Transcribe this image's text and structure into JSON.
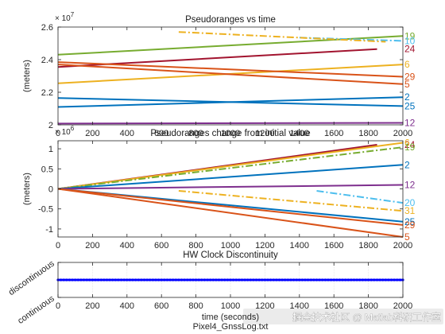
{
  "footer": "Pixel4_GnssLog.txt",
  "watermark": "掘金技术社区 @ Matlab科研工作室",
  "chart_data": [
    {
      "type": "line",
      "title": "Pseudoranges vs time",
      "ylabel": "(meters)",
      "xlabel": "",
      "exponent_label": "× 10^7",
      "exp_base": "× 10",
      "exp_power": "7",
      "xlim": [
        0,
        2000
      ],
      "ylim": [
        2.0,
        2.6
      ],
      "xticks": [
        "0",
        "200",
        "400",
        "600",
        "800",
        "1000",
        "1200",
        "1400",
        "1600",
        "1800",
        "2000"
      ],
      "yticks": [
        "2",
        "2.2",
        "2.4",
        "2.6"
      ],
      "ytick_values": [
        2.0,
        2.2,
        2.4,
        2.6
      ],
      "series": [
        {
          "name": "19",
          "color": "#77ac30",
          "dash": "solid",
          "x": [
            0,
            2000
          ],
          "y": [
            2.43,
            2.545
          ]
        },
        {
          "name": "10",
          "color": "#4dbeee",
          "dash": "dashdot",
          "x": [
            1400,
            2000
          ],
          "y": [
            2.535,
            2.515
          ]
        },
        {
          "name": "24",
          "color": "#a2142f",
          "dash": "solid",
          "x": [
            0,
            1850
          ],
          "y": [
            2.355,
            2.465
          ]
        },
        {
          "name": "",
          "color": "#edb120",
          "dash": "dashdot",
          "x": [
            700,
            1900
          ],
          "y": [
            2.57,
            2.51
          ]
        },
        {
          "name": "6",
          "color": "#edb120",
          "dash": "solid",
          "x": [
            0,
            2000
          ],
          "y": [
            2.255,
            2.37
          ]
        },
        {
          "name": "29",
          "color": "#d95319",
          "dash": "solid",
          "x": [
            0,
            2000
          ],
          "y": [
            2.385,
            2.295
          ]
        },
        {
          "name": "5",
          "color": "#d95319",
          "dash": "solid",
          "x": [
            0,
            2000
          ],
          "y": [
            2.37,
            2.25
          ]
        },
        {
          "name": "2",
          "color": "#0072bd",
          "dash": "solid",
          "x": [
            0,
            2000
          ],
          "y": [
            2.11,
            2.17
          ]
        },
        {
          "name": "25",
          "color": "#0072bd",
          "dash": "solid",
          "x": [
            0,
            2000
          ],
          "y": [
            2.165,
            2.115
          ]
        },
        {
          "name": "12",
          "color": "#7e2f8e",
          "dash": "solid",
          "x": [
            0,
            2000
          ],
          "y": [
            2.008,
            2.012
          ]
        }
      ]
    },
    {
      "type": "line",
      "title": "Pseudoranges change from initial value",
      "ylabel": "(meters)",
      "xlabel": "",
      "exponent_label": "× 10^6",
      "exp_base": "× 10",
      "exp_power": "6",
      "xlim": [
        0,
        2000
      ],
      "ylim": [
        -1.2,
        1.2
      ],
      "xticks": [
        "0",
        "200",
        "400",
        "600",
        "800",
        "1000",
        "1200",
        "1400",
        "1600",
        "1800",
        "2000"
      ],
      "yticks": [
        "-1",
        "-0.5",
        "0",
        "0.5",
        "1"
      ],
      "ytick_values": [
        -1,
        -0.5,
        0,
        0.5,
        1
      ],
      "series": [
        {
          "name": "24",
          "color": "#a2142f",
          "dash": "solid",
          "x": [
            0,
            1850
          ],
          "y": [
            0,
            1.1
          ]
        },
        {
          "name": "6",
          "color": "#edb120",
          "dash": "solid",
          "x": [
            0,
            2000
          ],
          "y": [
            0,
            1.15
          ]
        },
        {
          "name": "19",
          "color": "#77ac30",
          "dash": "dashdot",
          "x": [
            0,
            2000
          ],
          "y": [
            0,
            1.04
          ]
        },
        {
          "name": "2",
          "color": "#0072bd",
          "dash": "solid",
          "x": [
            0,
            2000
          ],
          "y": [
            0,
            0.6
          ]
        },
        {
          "name": "12",
          "color": "#7e2f8e",
          "dash": "solid",
          "x": [
            0,
            2000
          ],
          "y": [
            0,
            0.1
          ]
        },
        {
          "name": "20",
          "color": "#4dbeee",
          "dash": "dashdot",
          "x": [
            1500,
            2000
          ],
          "y": [
            -0.05,
            -0.35
          ]
        },
        {
          "name": "31",
          "color": "#edb120",
          "dash": "dashdot",
          "x": [
            700,
            2000
          ],
          "y": [
            -0.05,
            -0.55
          ]
        },
        {
          "name": "25",
          "color": "#0072bd",
          "dash": "solid",
          "x": [
            0,
            2000
          ],
          "y": [
            0,
            -0.82
          ]
        },
        {
          "name": "29",
          "color": "#d95319",
          "dash": "solid",
          "x": [
            0,
            2000
          ],
          "y": [
            0,
            -0.9
          ]
        },
        {
          "name": "5",
          "color": "#d95319",
          "dash": "solid",
          "x": [
            0,
            2000
          ],
          "y": [
            0,
            -1.2
          ]
        }
      ]
    },
    {
      "type": "line",
      "title": "HW Clock Discontinuity",
      "ylabel": "",
      "xlabel": "time (seconds)",
      "xlim": [
        0,
        2000
      ],
      "ylim": [
        0,
        1
      ],
      "xticks": [
        "0",
        "200",
        "400",
        "600",
        "800",
        "1000",
        "1200",
        "1400",
        "1600",
        "1800",
        "2000"
      ],
      "yticks": [
        "continuous",
        "discontinuous"
      ],
      "ytick_values": [
        0,
        1
      ],
      "series": [
        {
          "name": "",
          "color": "#0000ff",
          "dash": "solid",
          "x": [
            0,
            2000
          ],
          "y": [
            0.5,
            0.5
          ]
        }
      ]
    }
  ]
}
